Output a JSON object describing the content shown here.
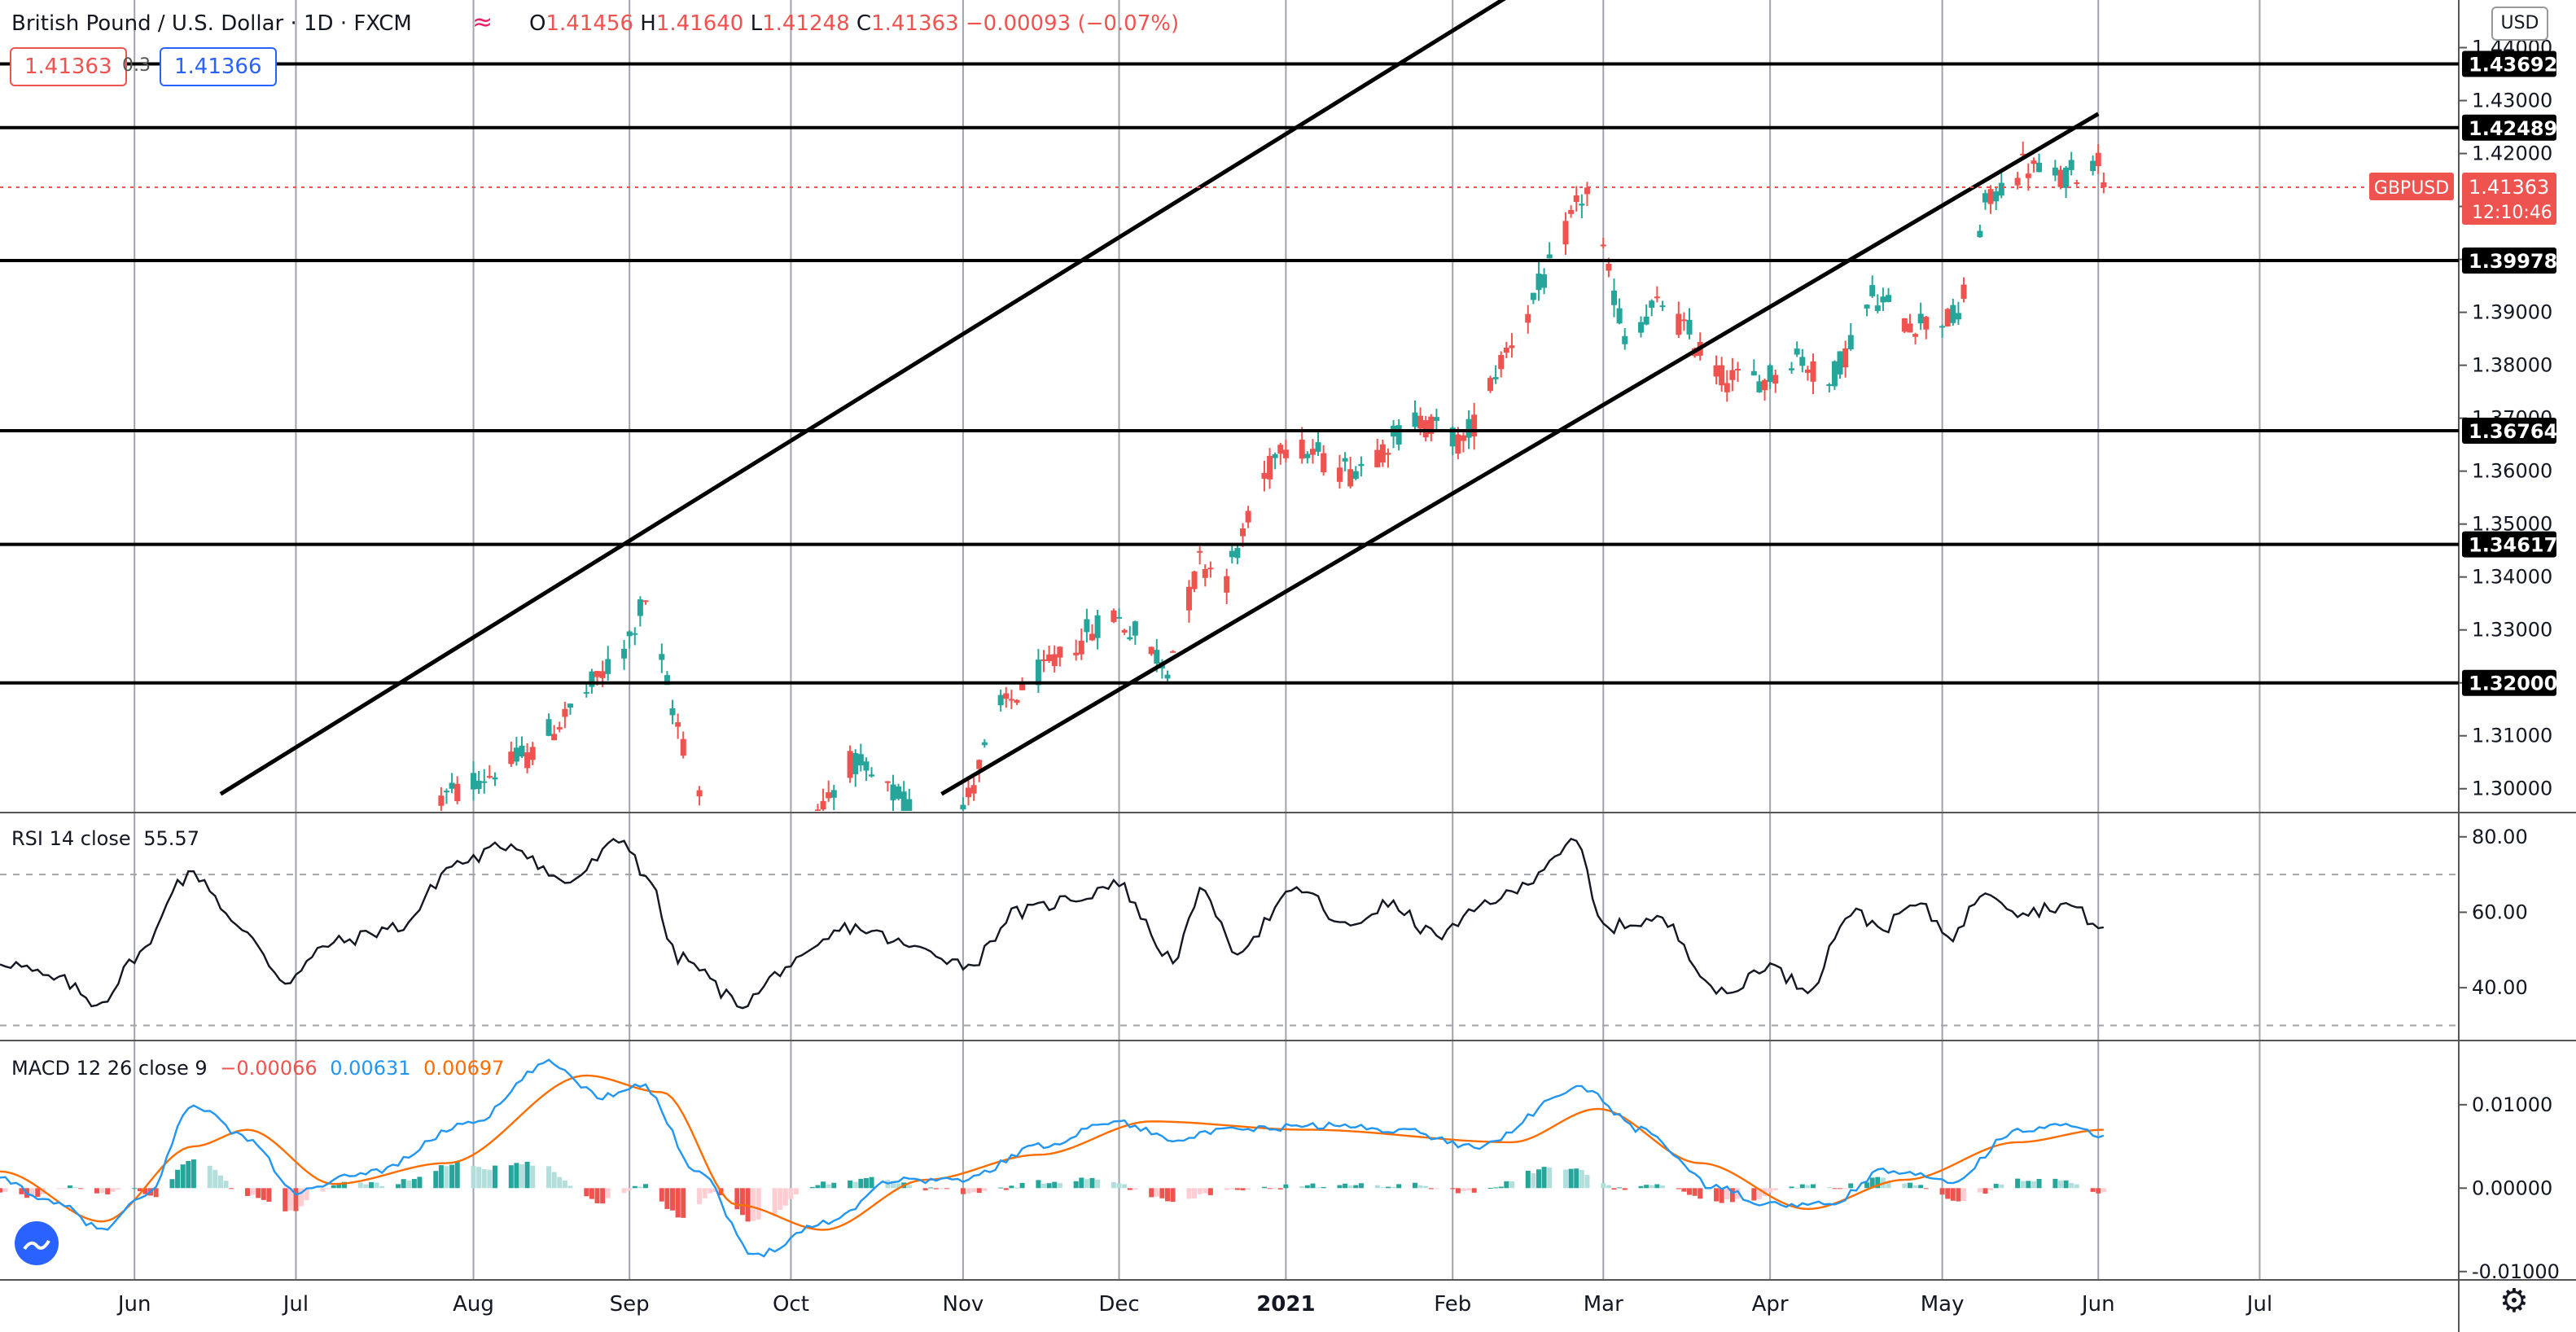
{
  "header": {
    "symbol_title": "British Pound / U.S. Dollar · 1D · FXCM",
    "compare_icon": "wave-icon",
    "open_label": "O",
    "open": "1.41456",
    "high_label": "H",
    "high": "1.41640",
    "low_label": "L",
    "low": "1.41248",
    "close_label": "C",
    "close": "1.41363",
    "change": "−0.00093 (−0.07%)",
    "bid": "1.41363",
    "spread": "0.3",
    "ask": "1.41366"
  },
  "currency": "USD",
  "colors": {
    "up": "#26a69a",
    "down": "#ef5350",
    "rsi": "#131722",
    "macd": "#2196f3",
    "signal": "#ff6d00",
    "hist_up_strong": "#26a69a",
    "hist_up_weak": "#b2dfdb",
    "hist_down_strong": "#ef5350",
    "hist_down_weak": "#ffcdd2"
  },
  "price_badge": {
    "symbol": "GBPUSD",
    "price": "1.41363",
    "countdown": "12:10:46"
  },
  "chart_data": {
    "type": "candlestick",
    "x_range": [
      "2020-05-07",
      "2021-08-07"
    ],
    "x_tick_labels": [
      {
        "date": "2020-06-01",
        "label": "Jun"
      },
      {
        "date": "2020-07-01",
        "label": "Jul"
      },
      {
        "date": "2020-08-03",
        "label": "Aug"
      },
      {
        "date": "2020-09-01",
        "label": "Sep"
      },
      {
        "date": "2020-10-01",
        "label": "Oct"
      },
      {
        "date": "2020-11-02",
        "label": "Nov"
      },
      {
        "date": "2020-12-01",
        "label": "Dec"
      },
      {
        "date": "2021-01-01",
        "label": "2021"
      },
      {
        "date": "2021-02-01",
        "label": "Feb"
      },
      {
        "date": "2021-03-01",
        "label": "Mar"
      },
      {
        "date": "2021-04-01",
        "label": "Apr"
      },
      {
        "date": "2021-05-03",
        "label": "May"
      },
      {
        "date": "2021-06-01",
        "label": "Jun"
      },
      {
        "date": "2021-07-01",
        "label": "Jul"
      }
    ],
    "price_panel": {
      "y_range": [
        1.2955,
        1.449
      ],
      "y_ticks": [
        "1.30000",
        "1.31000",
        "1.32000",
        "1.33000",
        "1.34000",
        "1.35000",
        "1.36000",
        "1.37000",
        "1.38000",
        "1.39000",
        "1.40000",
        "1.41000",
        "1.42000",
        "1.43000",
        "1.44000"
      ],
      "horizontal_levels": [
        "1.43692",
        "1.42489",
        "1.39978",
        "1.36764",
        "1.34617",
        "1.32000"
      ],
      "trend_lines": [
        {
          "from": [
            "2020-06-17",
            1.299
          ],
          "to": [
            "2021-02-11",
            1.4495
          ]
        },
        {
          "from": [
            "2020-10-29",
            1.299
          ],
          "to": [
            "2021-06-01",
            1.4275
          ]
        }
      ],
      "anchors": [
        [
          "2020-07-28",
          1.298,
          1.315
        ],
        [
          "2020-08-14",
          1.307,
          1.315
        ],
        [
          "2020-08-31",
          1.326,
          1.342
        ],
        [
          "2020-09-04",
          1.336,
          1.34
        ],
        [
          "2020-09-09",
          1.315,
          1.3
        ],
        [
          "2020-09-23",
          1.27,
          1.272
        ],
        [
          "2020-10-01",
          1.288,
          1.293
        ],
        [
          "2020-10-12",
          1.305,
          1.293
        ],
        [
          "2020-10-21",
          1.298,
          1.308
        ],
        [
          "2020-10-30",
          1.288,
          1.295
        ],
        [
          "2020-11-09",
          1.315,
          1.32
        ],
        [
          "2020-11-20",
          1.325,
          1.328
        ],
        [
          "2020-11-30",
          1.333,
          1.339
        ],
        [
          "2020-12-10",
          1.323,
          1.327
        ],
        [
          "2020-12-16",
          1.343,
          1.352
        ],
        [
          "2020-12-21",
          1.34,
          1.345
        ],
        [
          "2020-12-31",
          1.366,
          1.367
        ],
        [
          "2021-01-13",
          1.36,
          1.365
        ],
        [
          "2021-01-26",
          1.37,
          1.368
        ],
        [
          "2021-02-03",
          1.365,
          1.372
        ],
        [
          "2021-02-10",
          1.381,
          1.386
        ],
        [
          "2021-02-19",
          1.398,
          1.403
        ],
        [
          "2021-02-24",
          1.41,
          1.414
        ],
        [
          "2021-02-26",
          1.413,
          1.395
        ],
        [
          "2021-03-05",
          1.385,
          1.383
        ],
        [
          "2021-03-12",
          1.392,
          1.39
        ],
        [
          "2021-03-23",
          1.378,
          1.374
        ],
        [
          "2021-03-31",
          1.377,
          1.378
        ],
        [
          "2021-04-06",
          1.382,
          1.39
        ],
        [
          "2021-04-12",
          1.376,
          1.374
        ],
        [
          "2021-04-20",
          1.393,
          1.398
        ],
        [
          "2021-04-27",
          1.388,
          1.39
        ],
        [
          "2021-05-06",
          1.389,
          1.39
        ],
        [
          "2021-05-11",
          1.41,
          1.413
        ],
        [
          "2021-05-18",
          1.418,
          1.418
        ],
        [
          "2021-05-25",
          1.415,
          1.416
        ],
        [
          "2021-06-01",
          1.419,
          1.4136
        ],
        [
          "2021-06-02",
          1.4146,
          1.4136
        ]
      ],
      "current": {
        "o": 1.41456,
        "h": 1.4164,
        "l": 1.41248,
        "c": 1.41363
      }
    },
    "rsi_panel": {
      "title": "RSI 14 close",
      "value": "55.57",
      "y_range": [
        26,
        86
      ],
      "band_upper": 70,
      "band_lower": 30,
      "y_ticks": [
        "40.00",
        "60.00",
        "80.00"
      ],
      "anchors": [
        [
          "2020-05-07",
          47
        ],
        [
          "2020-05-18",
          42
        ],
        [
          "2020-05-25",
          36
        ],
        [
          "2020-06-03",
          50
        ],
        [
          "2020-06-09",
          68
        ],
        [
          "2020-06-12",
          70
        ],
        [
          "2020-06-22",
          54
        ],
        [
          "2020-06-29",
          42
        ],
        [
          "2020-07-08",
          52
        ],
        [
          "2020-07-20",
          56
        ],
        [
          "2020-07-31",
          73
        ],
        [
          "2020-08-10",
          78
        ],
        [
          "2020-08-20",
          68
        ],
        [
          "2020-08-31",
          79
        ],
        [
          "2020-09-04",
          70
        ],
        [
          "2020-09-10",
          48
        ],
        [
          "2020-09-22",
          36
        ],
        [
          "2020-10-01",
          46
        ],
        [
          "2020-10-12",
          56
        ],
        [
          "2020-10-26",
          50
        ],
        [
          "2020-11-03",
          46
        ],
        [
          "2020-11-12",
          60
        ],
        [
          "2020-11-24",
          64
        ],
        [
          "2020-11-30",
          68
        ],
        [
          "2020-12-11",
          48
        ],
        [
          "2020-12-17",
          66
        ],
        [
          "2020-12-22",
          50
        ],
        [
          "2021-01-04",
          66
        ],
        [
          "2021-01-12",
          56
        ],
        [
          "2021-01-20",
          62
        ],
        [
          "2021-01-29",
          54
        ],
        [
          "2021-02-10",
          64
        ],
        [
          "2021-02-24",
          78
        ],
        [
          "2021-03-01",
          56
        ],
        [
          "2021-03-11",
          58
        ],
        [
          "2021-03-24",
          38
        ],
        [
          "2021-03-31",
          46
        ],
        [
          "2021-04-08",
          40
        ],
        [
          "2021-04-16",
          60
        ],
        [
          "2021-04-22",
          56
        ],
        [
          "2021-04-28",
          62
        ],
        [
          "2021-05-05",
          54
        ],
        [
          "2021-05-11",
          66
        ],
        [
          "2021-05-18",
          60
        ],
        [
          "2021-05-26",
          62
        ],
        [
          "2021-06-02",
          56
        ]
      ]
    },
    "macd_panel": {
      "title": "MACD 12 26 close 9",
      "histogram": "−0.00066",
      "macd": "0.00631",
      "signal": "0.00697",
      "y_range": [
        -0.011,
        0.0175
      ],
      "y_ticks": [
        "-0.01000",
        "0.00000",
        "0.01000"
      ],
      "macd_anchors": [
        [
          "2020-05-07",
          0.001
        ],
        [
          "2020-05-18",
          -0.002
        ],
        [
          "2020-05-26",
          -0.005
        ],
        [
          "2020-06-03",
          -0.001
        ],
        [
          "2020-06-12",
          0.01
        ],
        [
          "2020-06-22",
          0.006
        ],
        [
          "2020-07-01",
          -0.0005
        ],
        [
          "2020-07-15",
          0.002
        ],
        [
          "2020-08-03",
          0.008
        ],
        [
          "2020-08-17",
          0.015
        ],
        [
          "2020-08-27",
          0.011
        ],
        [
          "2020-09-03",
          0.0125
        ],
        [
          "2020-09-14",
          0.002
        ],
        [
          "2020-09-24",
          -0.008
        ],
        [
          "2020-10-08",
          -0.004
        ],
        [
          "2020-10-20",
          0.001
        ],
        [
          "2020-11-02",
          0.001
        ],
        [
          "2020-11-16",
          0.005
        ],
        [
          "2020-11-30",
          0.008
        ],
        [
          "2020-12-11",
          0.006
        ],
        [
          "2020-12-23",
          0.007
        ],
        [
          "2021-01-08",
          0.0075
        ],
        [
          "2021-01-22",
          0.007
        ],
        [
          "2021-02-05",
          0.005
        ],
        [
          "2021-02-25",
          0.012
        ],
        [
          "2021-03-08",
          0.007
        ],
        [
          "2021-03-22",
          0.0
        ],
        [
          "2021-04-01",
          -0.002
        ],
        [
          "2021-04-12",
          -0.002
        ],
        [
          "2021-04-22",
          0.002
        ],
        [
          "2021-05-05",
          0.001
        ],
        [
          "2021-05-17",
          0.007
        ],
        [
          "2021-05-25",
          0.0075
        ],
        [
          "2021-06-02",
          0.0063
        ]
      ],
      "signal_anchors": [
        [
          "2020-05-07",
          0.002
        ],
        [
          "2020-05-26",
          -0.004
        ],
        [
          "2020-06-12",
          0.005
        ],
        [
          "2020-06-22",
          0.007
        ],
        [
          "2020-07-08",
          0.0005
        ],
        [
          "2020-07-29",
          0.003
        ],
        [
          "2020-08-24",
          0.0135
        ],
        [
          "2020-09-07",
          0.0115
        ],
        [
          "2020-09-21",
          -0.002
        ],
        [
          "2020-10-07",
          -0.005
        ],
        [
          "2020-10-26",
          0.001
        ],
        [
          "2020-11-16",
          0.004
        ],
        [
          "2020-12-07",
          0.008
        ],
        [
          "2021-01-05",
          0.007
        ],
        [
          "2021-02-12",
          0.0055
        ],
        [
          "2021-02-28",
          0.0095
        ],
        [
          "2021-03-19",
          0.003
        ],
        [
          "2021-04-08",
          -0.0025
        ],
        [
          "2021-04-26",
          0.001
        ],
        [
          "2021-05-17",
          0.0055
        ],
        [
          "2021-06-02",
          0.007
        ]
      ]
    }
  }
}
